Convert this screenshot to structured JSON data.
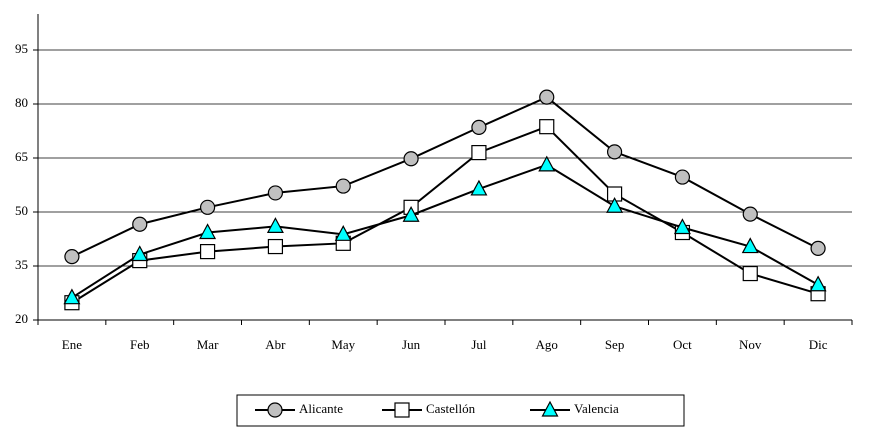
{
  "chart_data": {
    "type": "line",
    "categories": [
      "Ene",
      "Feb",
      "Mar",
      "Abr",
      "May",
      "Jun",
      "Jul",
      "Ago",
      "Sep",
      "Oct",
      "Nov",
      "Dic"
    ],
    "series": [
      {
        "name": "Alicante",
        "color": "#c0c0c0",
        "marker": "circle",
        "values": [
          37.6,
          46.6,
          51.3,
          55.3,
          57.2,
          64.8,
          73.5,
          81.9,
          66.7,
          59.7,
          49.4,
          39.9
        ]
      },
      {
        "name": "Castellón",
        "color": "#ffffff",
        "marker": "square",
        "values": [
          24.8,
          36.5,
          39.0,
          40.4,
          41.3,
          51.3,
          66.5,
          73.7,
          55.0,
          44.3,
          32.9,
          27.3
        ]
      },
      {
        "name": "Valencia",
        "color": "#00ffff",
        "marker": "triangle",
        "values": [
          26.2,
          38.2,
          44.3,
          46.0,
          43.8,
          49.1,
          56.4,
          63.1,
          51.6,
          45.7,
          40.4,
          29.8
        ]
      }
    ],
    "ylim": [
      20,
      105
    ],
    "yticks": [
      20,
      35,
      50,
      65,
      80,
      95
    ],
    "grid": true,
    "legend": "bottom"
  }
}
